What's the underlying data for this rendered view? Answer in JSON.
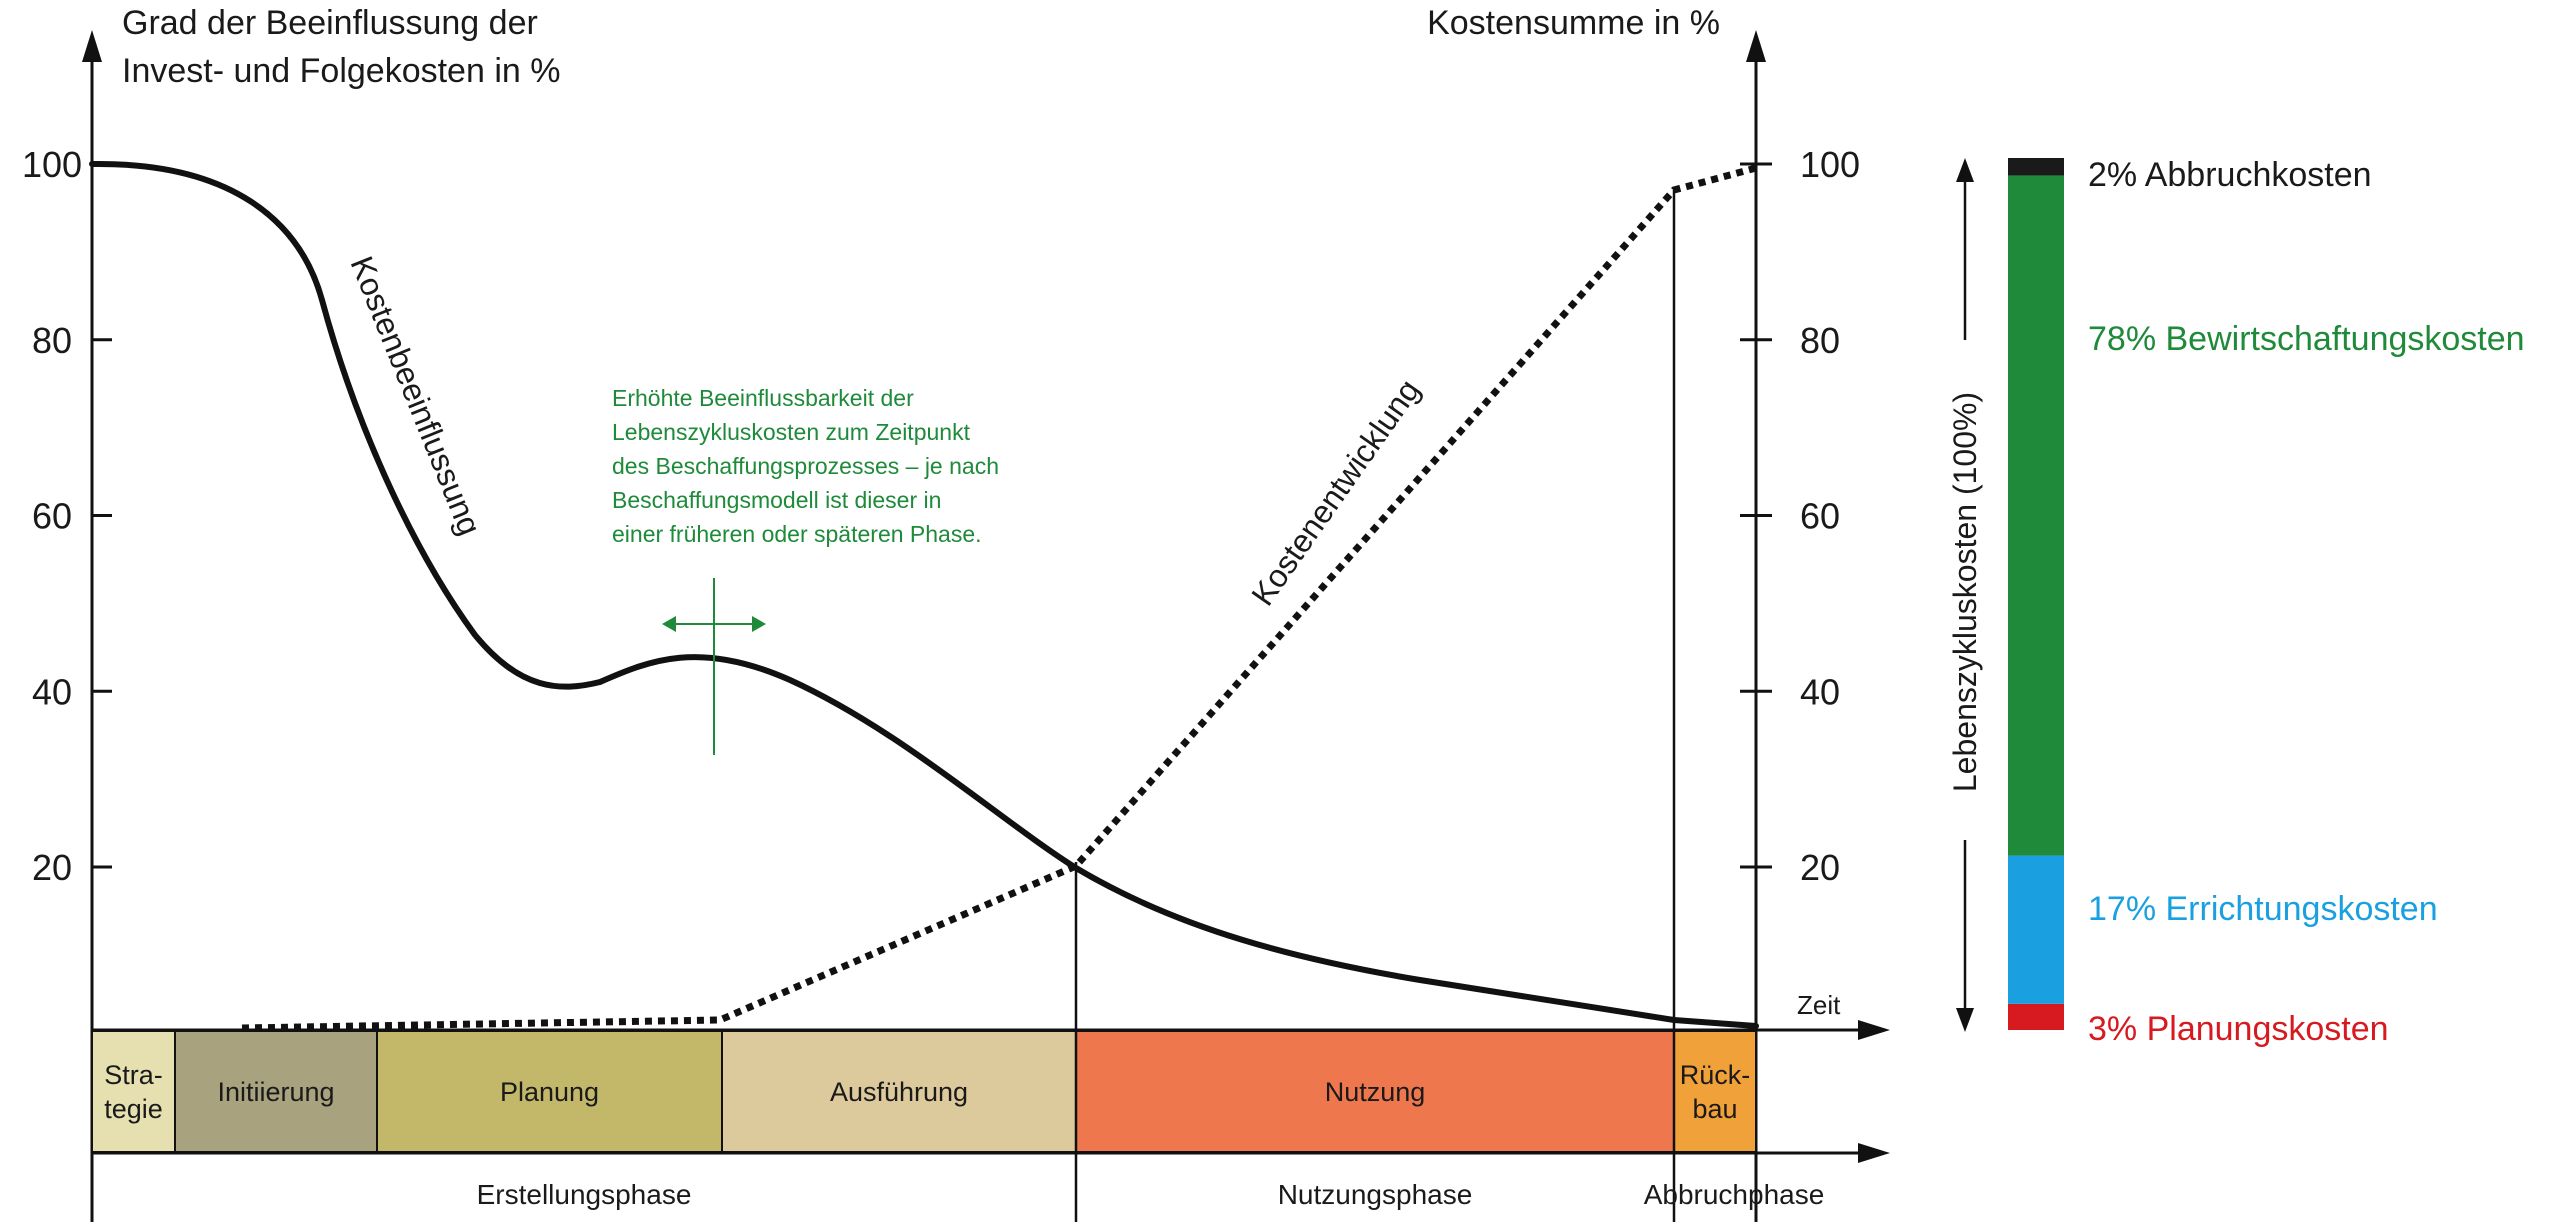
{
  "chart_data": {
    "type": "line",
    "left_axis_label_line1": "Grad der Beeinflussung der",
    "left_axis_label_line2": "Invest- und Folgekosten in %",
    "right_axis_label": "Kostensumme in %",
    "x_axis_label": "Zeit",
    "y_ticks": [
      "20",
      "40",
      "60",
      "80",
      "100"
    ],
    "ylim": [
      0,
      100
    ],
    "series": [
      {
        "name": "Kostenbeeinflussung",
        "style": "solid"
      },
      {
        "name": "Kostenentwicklung",
        "style": "dotted"
      }
    ],
    "annotation": [
      "Erhöhte Beeinflussbarkeit der",
      "Lebenszykluskosten zum Zeitpunkt",
      "des Beschaffungsprozesses – je nach",
      "Beschaffungsmodell ist dieser in",
      "einer früheren oder späteren Phase."
    ],
    "phases": [
      {
        "label_lines": [
          "Stra-",
          "tegie"
        ],
        "color": "#e6e0b0"
      },
      {
        "label_lines": [
          "Initiierung"
        ],
        "color": "#a8a27e"
      },
      {
        "label_lines": [
          "Planung"
        ],
        "color": "#c3b86a"
      },
      {
        "label_lines": [
          "Ausführung"
        ],
        "color": "#dcc99c"
      },
      {
        "label_lines": [
          "Nutzung"
        ],
        "color": "#ef774d"
      },
      {
        "label_lines": [
          "Rück-",
          "bau"
        ],
        "color": "#f0a13a"
      }
    ],
    "super_phases": [
      "Erstellungsphase",
      "Nutzungsphase",
      "Abbruchphase"
    ],
    "lifecycle_label": "Lebenszykluskosten (100%)",
    "cost_breakdown": [
      {
        "label": "3% Planungskosten",
        "value": 3,
        "color": "#d71920"
      },
      {
        "label": "17% Errichtungskosten",
        "value": 17,
        "color": "#1aa0e0"
      },
      {
        "label": "78% Bewirtschaftungskosten",
        "value": 78,
        "color": "#1e8a3a"
      },
      {
        "label": "2% Abbruchkosten",
        "value": 2,
        "color": "#1a1a1a"
      }
    ]
  }
}
